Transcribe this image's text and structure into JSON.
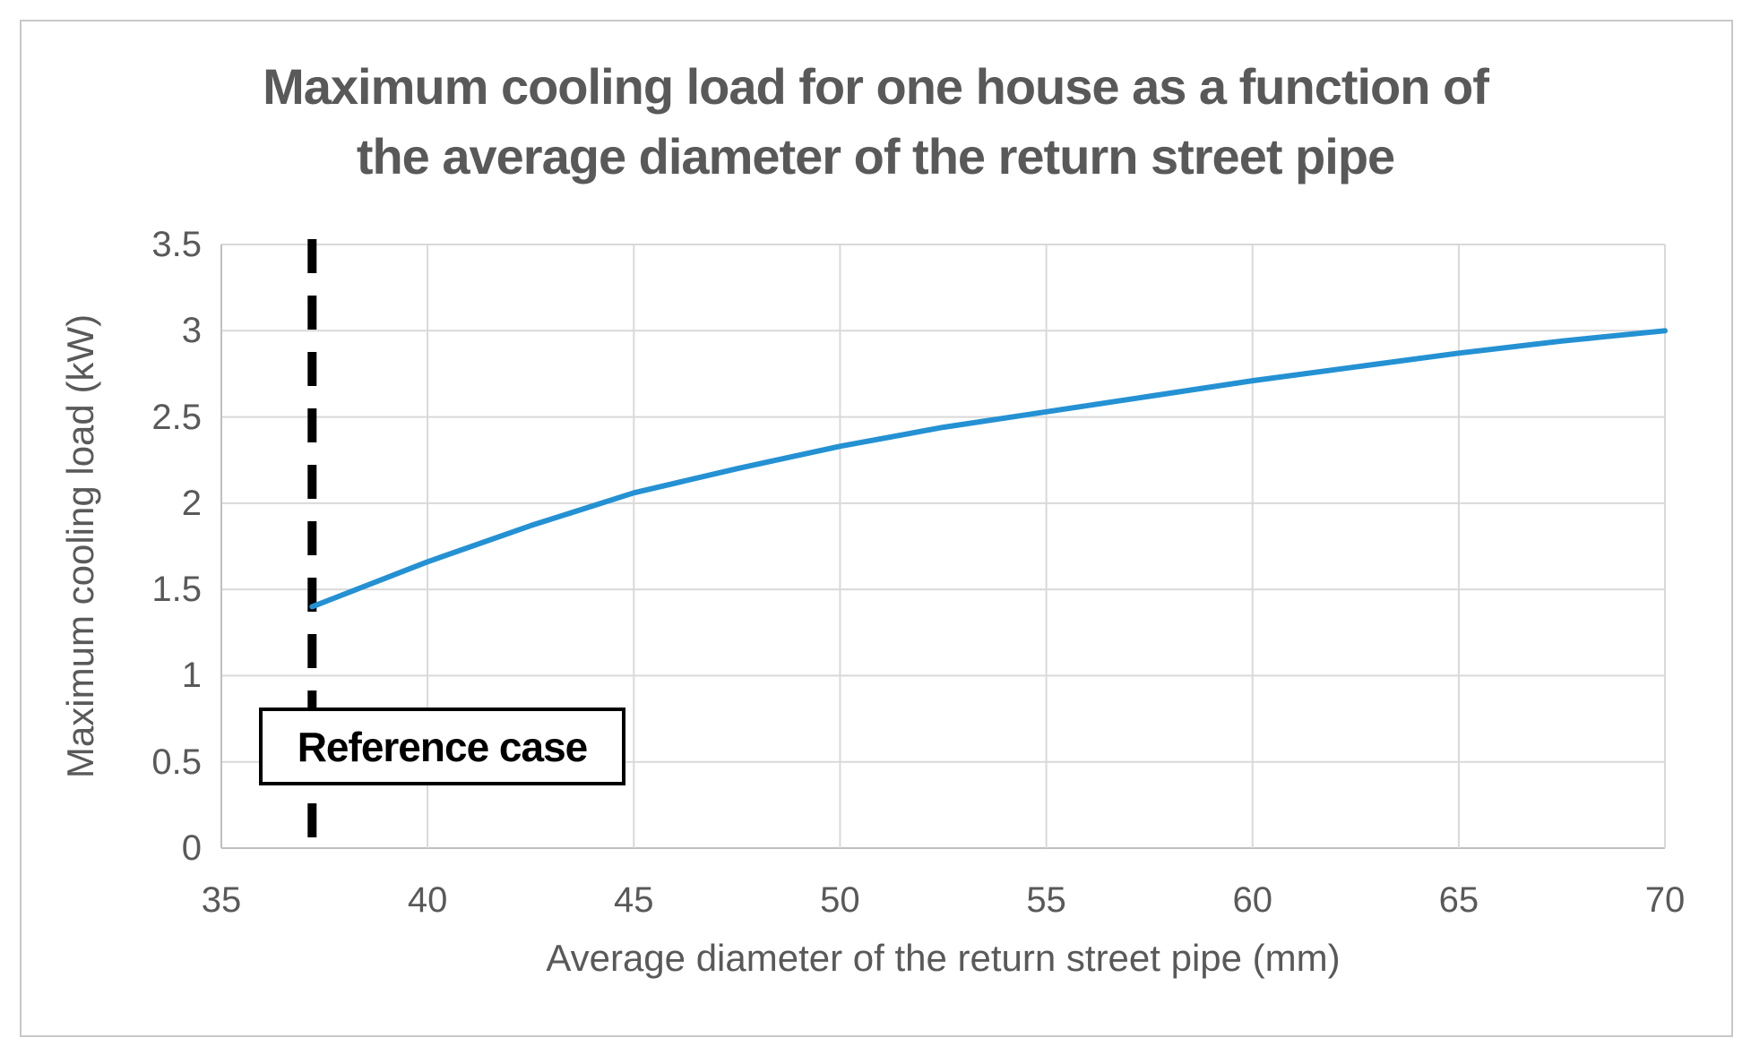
{
  "chart_data": {
    "type": "line",
    "title_line1": "Maximum cooling load for one house as a function of",
    "title_line2": "the average diameter of the return street pipe",
    "xlabel": "Average diameter of the return street pipe (mm)",
    "ylabel": "Maximum cooling load (kW)",
    "xlim": [
      35,
      70
    ],
    "ylim": [
      0,
      3.5
    ],
    "x_ticks": [
      35,
      40,
      45,
      50,
      55,
      60,
      65,
      70
    ],
    "y_ticks": [
      0,
      0.5,
      1,
      1.5,
      2,
      2.5,
      3,
      3.5
    ],
    "grid": true,
    "legend": "none",
    "series": [
      {
        "name": "Maximum cooling load",
        "color": "#2491d3",
        "points": [
          [
            37.2,
            1.4
          ],
          [
            40,
            1.66
          ],
          [
            42.5,
            1.87
          ],
          [
            45,
            2.06
          ],
          [
            47.5,
            2.2
          ],
          [
            50,
            2.33
          ],
          [
            52.5,
            2.44
          ],
          [
            55,
            2.53
          ],
          [
            57.5,
            2.62
          ],
          [
            60,
            2.71
          ],
          [
            62.5,
            2.79
          ],
          [
            65,
            2.87
          ],
          [
            67.5,
            2.94
          ],
          [
            70,
            3.0
          ]
        ]
      }
    ],
    "annotation": {
      "label": "Reference case",
      "x": 37.2,
      "line_style": "dashed",
      "line_color": "#000000"
    },
    "colors": {
      "text": "#595959",
      "gridline": "#d9d9d9",
      "axis_line": "#bfbfbf",
      "outer_border": "#c8c8c8",
      "background": "#ffffff"
    }
  }
}
